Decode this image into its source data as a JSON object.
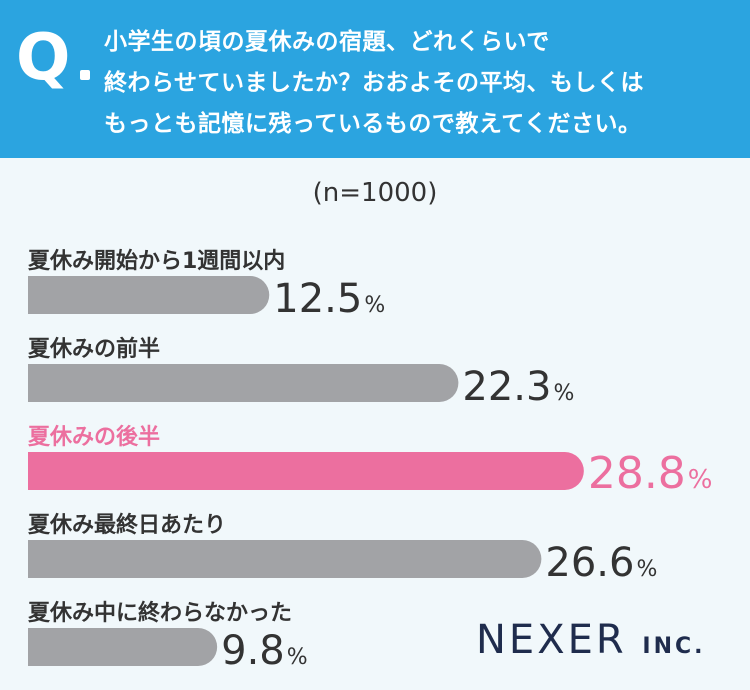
{
  "question": {
    "mark": "Q",
    "lines": [
      "小学生の頃の夏休みの宿題、どれくらいで",
      "終わらせていましたか？おおよその平均、もしくは",
      "もっとも記憶に残っているもので教えてください。"
    ]
  },
  "sample_label": "(n=1000)",
  "logo": {
    "name": "NEXER",
    "suffix": "INC."
  },
  "colors": {
    "header": "#2ba4e0",
    "bar": "#a2a3a6",
    "highlight": "#ec6f9f",
    "text": "#333333"
  },
  "chart_data": {
    "type": "bar",
    "orientation": "horizontal",
    "unit": "%",
    "categories": [
      "夏休み開始から1週間以内",
      "夏休みの前半",
      "夏休みの後半",
      "夏休み最終日あたり",
      "夏休み中に終わらなかった"
    ],
    "values": [
      12.5,
      22.3,
      28.8,
      26.6,
      9.8
    ],
    "value_labels": [
      "12.5",
      "22.3",
      "28.8",
      "26.6",
      "9.8"
    ],
    "highlight_index": 2
  }
}
